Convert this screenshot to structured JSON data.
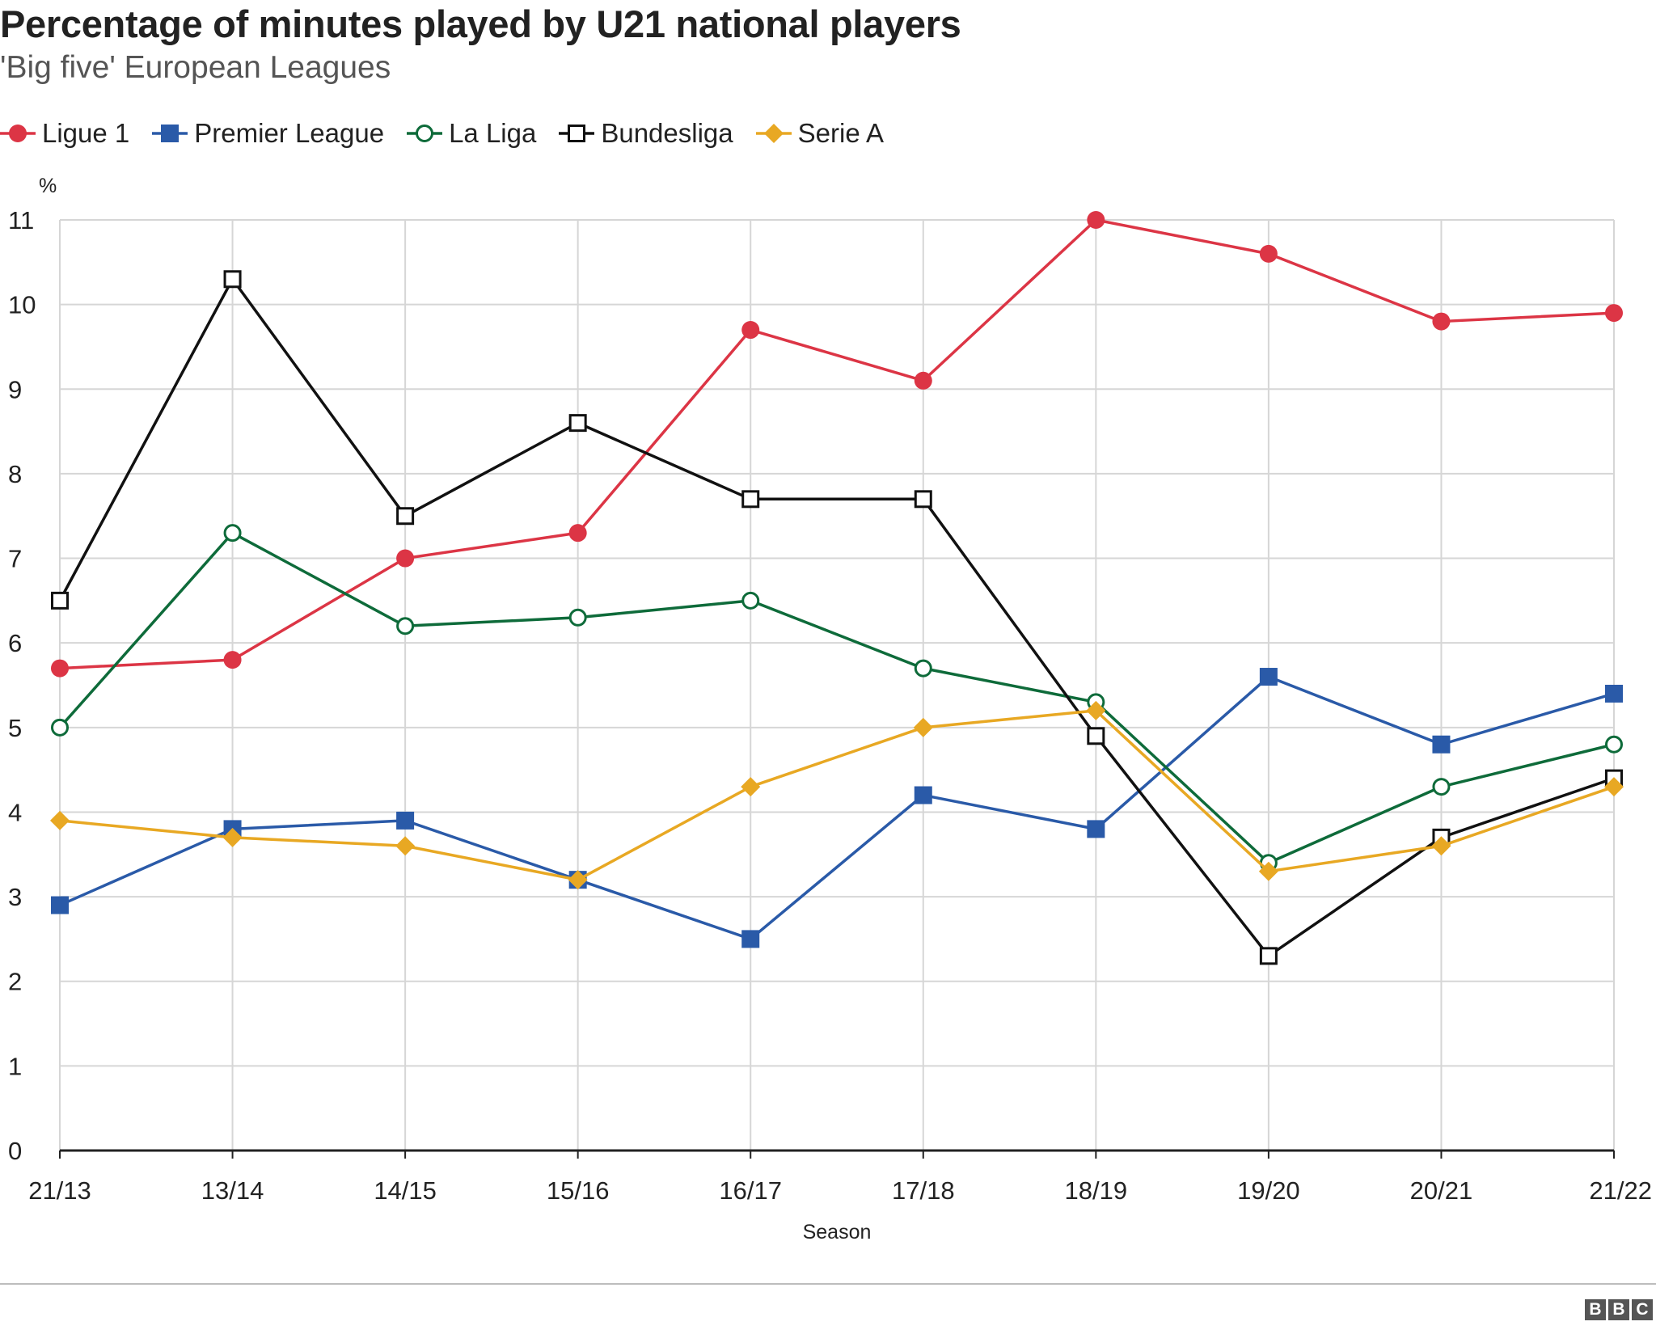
{
  "header": {
    "title": "Percentage of minutes played by U21 national players",
    "subtitle": "'Big five' European Leagues"
  },
  "footer": {
    "logo_letters": [
      "B",
      "B",
      "C"
    ]
  },
  "chart_data": {
    "type": "line",
    "title": "Percentage of minutes played by U21 national players",
    "subtitle": "'Big five' European Leagues",
    "xlabel": "Season",
    "ylabel": "%",
    "categories": [
      "21/13",
      "13/14",
      "14/15",
      "15/16",
      "16/17",
      "17/18",
      "18/19",
      "19/20",
      "20/21",
      "21/22"
    ],
    "yticks": [
      "0",
      "1",
      "2",
      "3",
      "4",
      "5",
      "6",
      "7",
      "8",
      "9",
      "10",
      "11"
    ],
    "ylim": [
      0,
      11
    ],
    "grid": true,
    "legend_position": "top-left",
    "series": [
      {
        "name": "Ligue 1",
        "color": "#dc3545",
        "marker": "filled-circle",
        "values": [
          5.7,
          5.8,
          7.0,
          7.3,
          9.7,
          9.1,
          11.0,
          10.6,
          9.8,
          9.9
        ]
      },
      {
        "name": "Premier League",
        "color": "#2a5aa8",
        "marker": "filled-square",
        "values": [
          2.9,
          3.8,
          3.9,
          3.2,
          2.5,
          4.2,
          3.8,
          5.6,
          4.8,
          5.4
        ]
      },
      {
        "name": "La Liga",
        "color": "#0e6b3a",
        "marker": "open-circle",
        "values": [
          5.0,
          7.3,
          6.2,
          6.3,
          6.5,
          5.7,
          5.3,
          3.4,
          4.3,
          4.8
        ]
      },
      {
        "name": "Bundesliga",
        "color": "#111111",
        "marker": "open-square",
        "values": [
          6.5,
          10.3,
          7.5,
          8.6,
          7.7,
          7.7,
          4.9,
          2.3,
          3.7,
          4.4
        ]
      },
      {
        "name": "Serie A",
        "color": "#e8a823",
        "marker": "filled-diamond",
        "values": [
          3.9,
          3.7,
          3.6,
          3.2,
          4.3,
          5.0,
          5.2,
          3.3,
          3.6,
          4.3
        ]
      }
    ]
  }
}
